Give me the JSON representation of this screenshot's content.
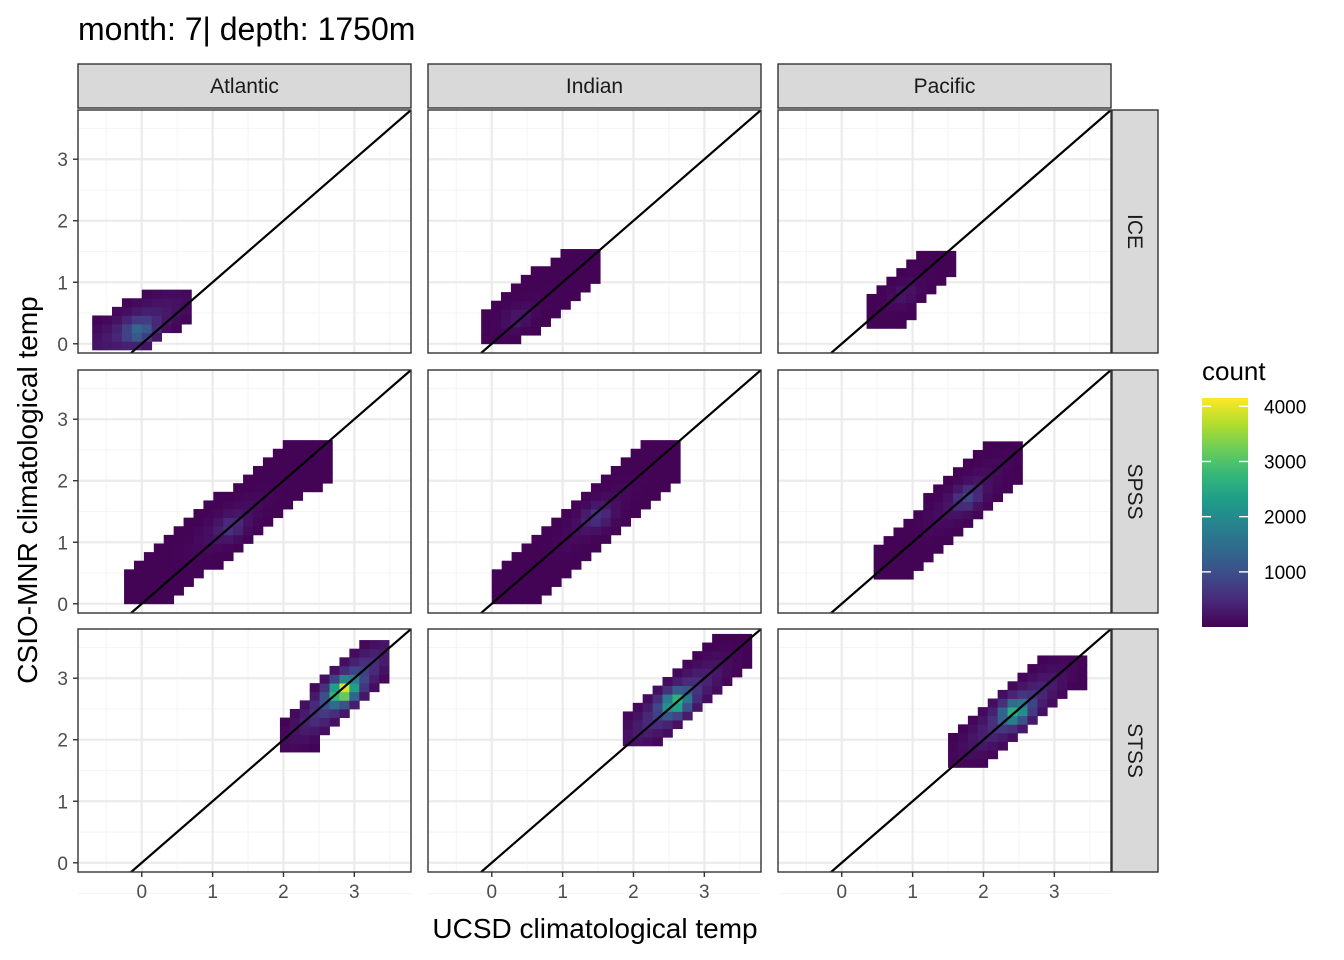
{
  "chart_data": {
    "type": "heatmap",
    "title": "month: 7| depth: 1750m",
    "xlabel": "UCSD climatological temp",
    "ylabel": "CSIO-MNR climatological temp",
    "facet_columns": [
      "Atlantic",
      "Indian",
      "Pacific"
    ],
    "facet_rows": [
      "ICE",
      "SPSS",
      "STSS"
    ],
    "x_ticks": [
      0,
      1,
      2,
      3
    ],
    "y_ticks": [
      0,
      1,
      2,
      3
    ],
    "xlim": [
      -0.9,
      3.8
    ],
    "ylim": [
      -0.15,
      3.8
    ],
    "reference_line": "y = x",
    "grid": true,
    "legend": {
      "title": "count",
      "placement": "right",
      "breaks": [
        1000,
        2000,
        3000,
        4000
      ],
      "range": [
        1,
        4150
      ],
      "colormap": [
        "#440154",
        "#482878",
        "#3e4a89",
        "#31688e",
        "#26828e",
        "#1f9e89",
        "#35b779",
        "#6dcd59",
        "#b4de2c",
        "#fde725"
      ]
    },
    "bin_width": 0.14,
    "panels": [
      {
        "column": "Atlantic",
        "row": "ICE",
        "x_range": [
          -0.7,
          0.65
        ],
        "y_range": [
          -0.1,
          0.8
        ],
        "peak": {
          "x": 0.0,
          "y": 0.15,
          "count": 1800
        }
      },
      {
        "column": "Indian",
        "row": "ICE",
        "x_range": [
          -0.15,
          1.5
        ],
        "y_range": [
          0.0,
          1.5
        ],
        "peak": {
          "x": 0.4,
          "y": 0.4,
          "count": 300
        }
      },
      {
        "column": "Pacific",
        "row": "ICE",
        "x_range": [
          0.35,
          1.5
        ],
        "y_range": [
          0.25,
          1.5
        ],
        "peak": {
          "x": 0.9,
          "y": 0.8,
          "count": 250
        }
      },
      {
        "column": "Atlantic",
        "row": "SPSS",
        "x_range": [
          -0.25,
          2.6
        ],
        "y_range": [
          0.0,
          2.55
        ],
        "peak": {
          "x": 1.3,
          "y": 1.2,
          "count": 700
        }
      },
      {
        "column": "Indian",
        "row": "SPSS",
        "x_range": [
          0.0,
          2.6
        ],
        "y_range": [
          0.0,
          2.55
        ],
        "peak": {
          "x": 1.5,
          "y": 1.4,
          "count": 650
        }
      },
      {
        "column": "Pacific",
        "row": "SPSS",
        "x_range": [
          0.45,
          2.5
        ],
        "y_range": [
          0.4,
          2.55
        ],
        "peak": {
          "x": 1.8,
          "y": 1.7,
          "count": 900
        }
      },
      {
        "column": "Atlantic",
        "row": "STSS",
        "x_range": [
          1.95,
          3.45
        ],
        "y_range": [
          1.8,
          3.5
        ],
        "peak": {
          "x": 2.85,
          "y": 2.8,
          "count": 4100
        }
      },
      {
        "column": "Indian",
        "row": "STSS",
        "x_range": [
          1.85,
          3.65
        ],
        "y_range": [
          1.9,
          3.65
        ],
        "peak": {
          "x": 2.6,
          "y": 2.6,
          "count": 2900
        }
      },
      {
        "column": "Pacific",
        "row": "STSS",
        "x_range": [
          1.5,
          3.35
        ],
        "y_range": [
          1.55,
          3.35
        ],
        "peak": {
          "x": 2.45,
          "y": 2.45,
          "count": 2700
        }
      }
    ]
  }
}
